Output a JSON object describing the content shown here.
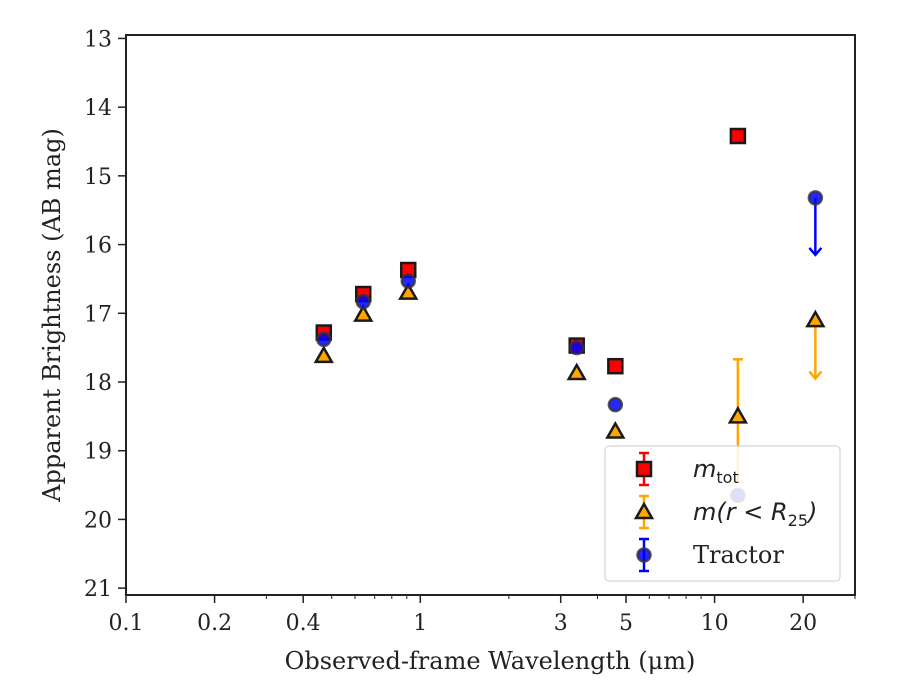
{
  "chart_data": {
    "type": "scatter",
    "title": "",
    "xlabel": "Observed-frame Wavelength (μm)",
    "ylabel": "Apparent Brightness (AB mag)",
    "xscale": "log",
    "xlim": [
      0.1,
      30
    ],
    "ylim": [
      21.1,
      12.95
    ],
    "y_inverted": true,
    "xticks": [
      0.1,
      0.2,
      0.4,
      1,
      3,
      5,
      10,
      20
    ],
    "xtick_labels": [
      "0.1",
      "0.2",
      "0.4",
      "1",
      "3",
      "5",
      "10",
      "20"
    ],
    "yticks": [
      13,
      14,
      15,
      16,
      17,
      18,
      19,
      20,
      21
    ],
    "ytick_labels": [
      "13",
      "14",
      "15",
      "16",
      "17",
      "18",
      "19",
      "20",
      "21"
    ],
    "grid": false,
    "legend_position": "lower-right",
    "series": [
      {
        "name": "m_tot",
        "legend_main": "m",
        "legend_sub": "tot",
        "marker": "square",
        "color": "#ff0000",
        "edgecolor": "#1a1a1a",
        "points": [
          {
            "x": 0.47,
            "y": 17.28
          },
          {
            "x": 0.64,
            "y": 16.72
          },
          {
            "x": 0.91,
            "y": 16.37
          },
          {
            "x": 3.4,
            "y": 17.47
          },
          {
            "x": 4.6,
            "y": 17.77
          },
          {
            "x": 12.0,
            "y": 14.42
          }
        ]
      },
      {
        "name": "m(r < R25)",
        "legend_main": "m(r < R",
        "legend_sub": "25",
        "legend_end": ")",
        "marker": "triangle",
        "color": "#ffa500",
        "edgecolor": "#1a1a1a",
        "points": [
          {
            "x": 0.47,
            "y": 17.62
          },
          {
            "x": 0.64,
            "y": 17.02
          },
          {
            "x": 0.91,
            "y": 16.7
          },
          {
            "x": 3.4,
            "y": 17.87
          },
          {
            "x": 4.6,
            "y": 18.72
          },
          {
            "x": 12.0,
            "y": 18.5,
            "yerr_low": 17.67,
            "yerr_high": 19.45
          },
          {
            "x": 22.0,
            "y": 17.1,
            "upper_limit_to": 17.95
          }
        ]
      },
      {
        "name": "Tractor",
        "legend_main": "Tractor",
        "marker": "circle",
        "color": "#0000ff",
        "edgecolor": "#333333",
        "points": [
          {
            "x": 0.47,
            "y": 17.38
          },
          {
            "x": 0.64,
            "y": 16.83
          },
          {
            "x": 0.91,
            "y": 16.53
          },
          {
            "x": 3.4,
            "y": 17.5
          },
          {
            "x": 4.6,
            "y": 18.33
          },
          {
            "x": 12.0,
            "y": 19.65
          },
          {
            "x": 22.0,
            "y": 15.32,
            "upper_limit_to": 16.15
          }
        ]
      }
    ]
  }
}
